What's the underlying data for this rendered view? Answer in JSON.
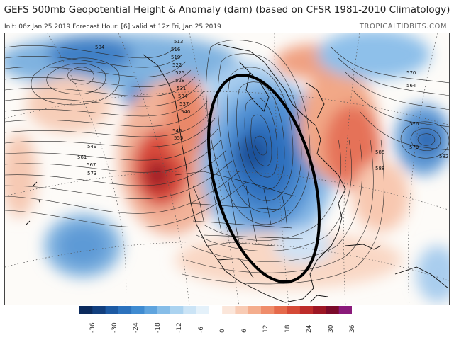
{
  "header": {
    "title": "GEFS 500mb Geopotential Height & Anomaly (dam) (based on CFSR 1981-2010 Climatology)",
    "subtitle": "Init: 06z Jan 25 2019   Forecast Hour: [6]   valid at 12z Fri, Jan 25 2019",
    "credit": "TROPICALTIDBITS.COM"
  },
  "map": {
    "height_labels": [
      "504",
      "513",
      "516",
      "519",
      "522",
      "525",
      "528",
      "531",
      "534",
      "537",
      "540",
      "546",
      "549",
      "555",
      "561",
      "564",
      "567",
      "570",
      "573",
      "576",
      "579",
      "582",
      "585",
      "588"
    ],
    "annotation": "ellipse-highlight"
  },
  "colorbar": {
    "ticks": [
      "-36",
      "-30",
      "-24",
      "-18",
      "-12",
      "-6",
      "0",
      "6",
      "12",
      "18",
      "24",
      "30",
      "36"
    ],
    "colors": [
      "#0b2a5c",
      "#123f7e",
      "#1d5aa3",
      "#2c72bd",
      "#3f8bd1",
      "#5fa4de",
      "#86bde8",
      "#abd3f0",
      "#cbe4f6",
      "#e4f1fa",
      "#ffffff",
      "#fbe6da",
      "#f8cbb4",
      "#f4ad8d",
      "#ef8c6a",
      "#e56a4b",
      "#d54a36",
      "#bd2c2a",
      "#9d1624",
      "#7b0a2a",
      "#8a1a7a"
    ]
  }
}
